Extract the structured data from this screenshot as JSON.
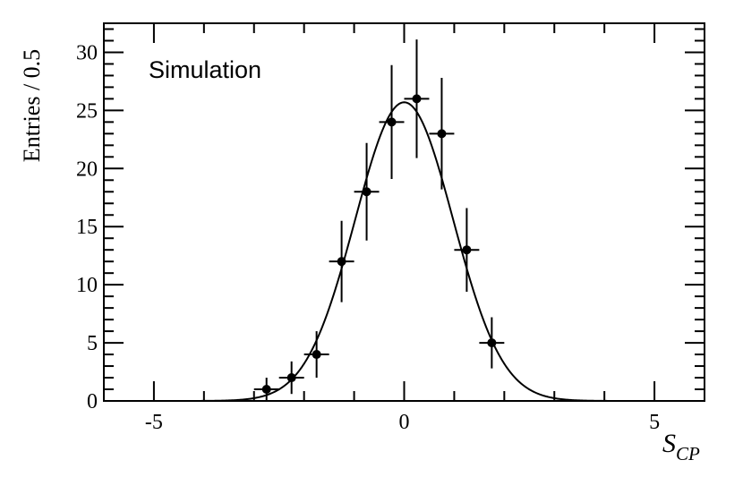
{
  "chart_data": {
    "type": "scatter",
    "annotation": "Simulation",
    "ylabel": "Entries / 0.5",
    "xlabel_main": "S",
    "xlabel_sub": "CP",
    "xlim": [
      -6,
      6
    ],
    "ylim": [
      0,
      32.5
    ],
    "x_ticks": [
      -5,
      0,
      5
    ],
    "y_ticks": [
      0,
      5,
      10,
      15,
      20,
      25,
      30
    ],
    "grid": false,
    "bin_width": 0.5,
    "points": [
      {
        "x": -2.75,
        "y": 1,
        "yerr": 1.0
      },
      {
        "x": -2.25,
        "y": 2,
        "yerr": 1.4
      },
      {
        "x": -1.75,
        "y": 4,
        "yerr": 2.0
      },
      {
        "x": -1.25,
        "y": 12,
        "yerr": 3.5
      },
      {
        "x": -0.75,
        "y": 18,
        "yerr": 4.2
      },
      {
        "x": -0.25,
        "y": 24,
        "yerr": 4.9
      },
      {
        "x": 0.25,
        "y": 26,
        "yerr": 5.1
      },
      {
        "x": 0.75,
        "y": 23,
        "yerr": 4.8
      },
      {
        "x": 1.25,
        "y": 13,
        "yerr": 3.6
      },
      {
        "x": 1.75,
        "y": 5,
        "yerr": 2.2
      }
    ],
    "fit": {
      "type": "gaussian",
      "amplitude": 25.7,
      "mean": 0.0,
      "sigma": 0.98
    }
  }
}
